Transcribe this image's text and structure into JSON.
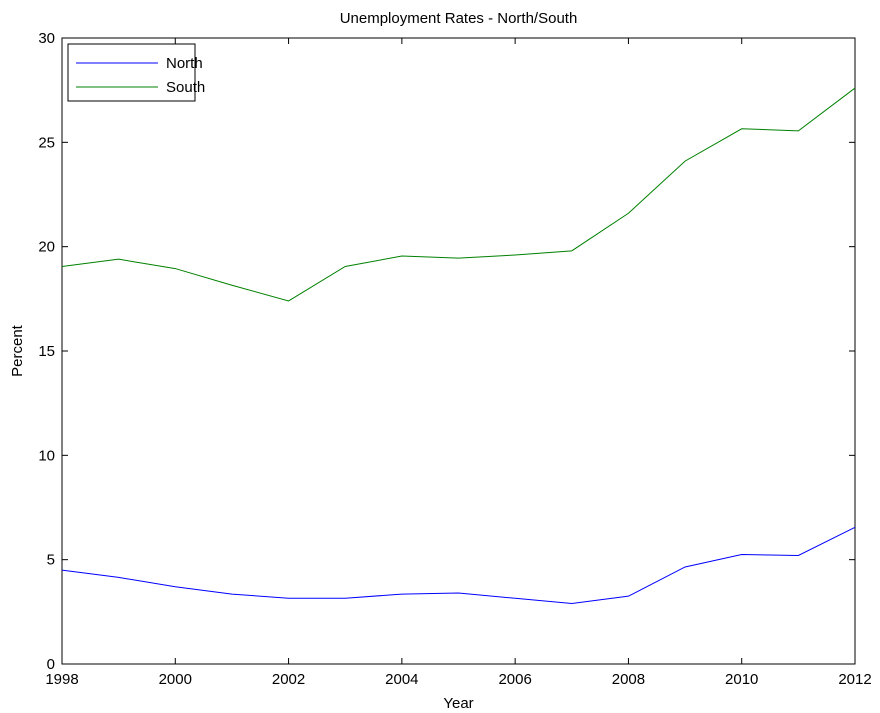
{
  "chart_data": {
    "type": "line",
    "title": "Unemployment Rates - North/South",
    "xlabel": "Year",
    "ylabel": "Percent",
    "xlim": [
      1998,
      2012
    ],
    "ylim": [
      0,
      30
    ],
    "xticks": [
      "1998",
      "2000",
      "2002",
      "2004",
      "2006",
      "2008",
      "2010",
      "2012"
    ],
    "yticks": [
      "0",
      "5",
      "10",
      "15",
      "20",
      "25",
      "30"
    ],
    "grid": false,
    "legend_position": "top-left",
    "x": [
      1998,
      1999,
      2000,
      2001,
      2002,
      2003,
      2004,
      2005,
      2006,
      2007,
      2008,
      2009,
      2010,
      2011,
      2012
    ],
    "series": [
      {
        "name": "North",
        "color": "#0000ff",
        "values": [
          4.5,
          4.15,
          3.7,
          3.35,
          3.15,
          3.15,
          3.35,
          3.4,
          3.15,
          2.9,
          3.25,
          4.65,
          5.25,
          5.2,
          6.55
        ]
      },
      {
        "name": "South",
        "color": "#008000",
        "values": [
          19.05,
          19.4,
          18.95,
          18.15,
          17.4,
          19.05,
          19.55,
          19.45,
          19.6,
          19.8,
          21.6,
          24.1,
          25.65,
          25.55,
          27.6
        ]
      }
    ]
  }
}
